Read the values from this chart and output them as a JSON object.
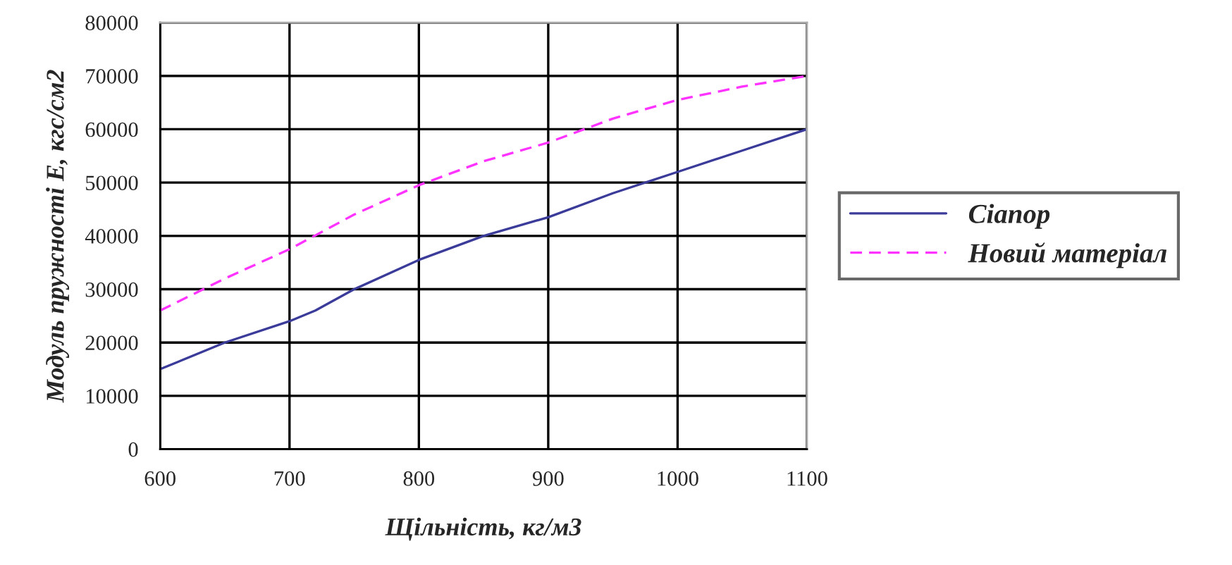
{
  "chart_data": {
    "type": "line",
    "xlabel": "Щільність, кг/м3",
    "ylabel": "Модуль пружності E, кгс/см2",
    "xlim": [
      600,
      1100
    ],
    "xticks": [
      600,
      700,
      800,
      900,
      1000,
      1100
    ],
    "ylim": [
      0,
      80000
    ],
    "yticks": [
      0,
      10000,
      20000,
      30000,
      40000,
      50000,
      60000,
      70000,
      80000
    ],
    "grid": true,
    "legend": "right",
    "series": [
      {
        "name": "Сіапор",
        "color": "#3b3b9a",
        "line_style": "solid",
        "x": [
          600,
          650,
          700,
          720,
          750,
          800,
          850,
          900,
          950,
          1000,
          1050,
          1100
        ],
        "values": [
          15000,
          20000,
          24000,
          26000,
          30000,
          35500,
          40000,
          43500,
          48000,
          52000,
          56000,
          60000
        ]
      },
      {
        "name": "Новий матеріал",
        "color": "#ff33ff",
        "line_style": "dashed",
        "x": [
          600,
          650,
          700,
          750,
          800,
          850,
          900,
          950,
          1000,
          1050,
          1100
        ],
        "values": [
          26000,
          32000,
          37500,
          44000,
          49500,
          54000,
          57500,
          62000,
          65500,
          68000,
          70000
        ]
      }
    ]
  }
}
